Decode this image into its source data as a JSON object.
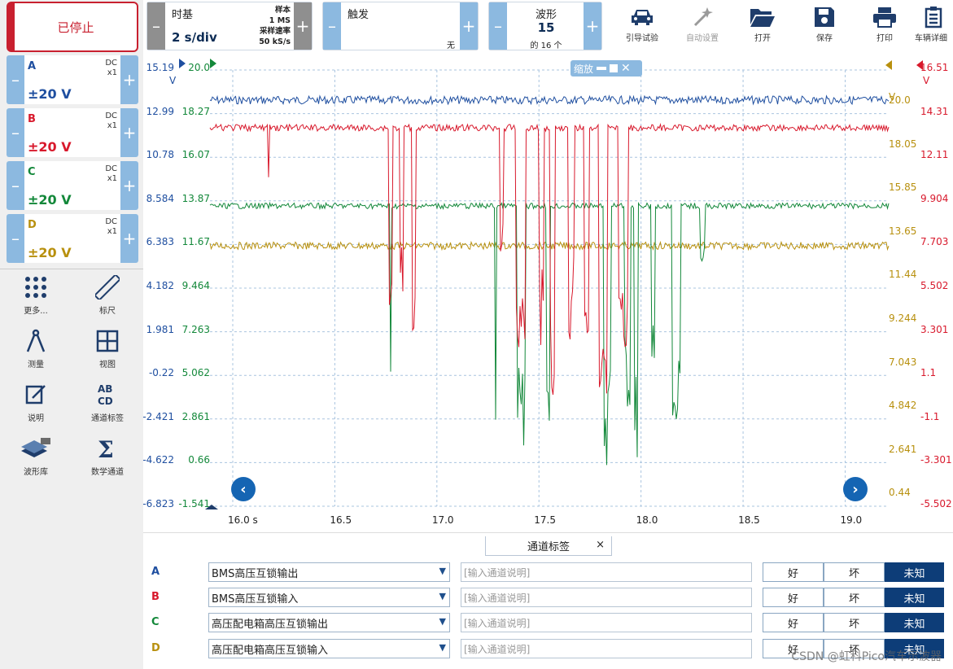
{
  "status_button": "已停止",
  "channels": [
    {
      "id": "A",
      "coupling": "DC",
      "probe": "x1",
      "range": "±20 V",
      "color": "#1f4fa0"
    },
    {
      "id": "B",
      "coupling": "DC",
      "probe": "x1",
      "range": "±20 V",
      "color": "#d8192c"
    },
    {
      "id": "C",
      "coupling": "DC",
      "probe": "x1",
      "range": "±20 V",
      "color": "#13883a"
    },
    {
      "id": "D",
      "coupling": "DC",
      "probe": "x1",
      "range": "±20 V",
      "color": "#b8900e"
    }
  ],
  "tools": [
    {
      "label": "更多...",
      "icon": "grid-dots-icon"
    },
    {
      "label": "标尺",
      "icon": "ruler-icon"
    },
    {
      "label": "测量",
      "icon": "compass-icon"
    },
    {
      "label": "视图",
      "icon": "view-grid-icon"
    },
    {
      "label": "说明",
      "icon": "note-edit-icon"
    },
    {
      "label": "通道标签",
      "icon": "abcd-icon"
    },
    {
      "label": "波形库",
      "icon": "waveform-library-icon"
    },
    {
      "label": "数学通道",
      "icon": "sigma-icon"
    }
  ],
  "timebase": {
    "title": "时基",
    "value": "2 s/div",
    "samples_label": "样本",
    "samples_value": "1 MS",
    "rate_label": "采样速率",
    "rate_value": "50 kS/s"
  },
  "trigger": {
    "title": "触发",
    "mode": "无"
  },
  "waveform": {
    "title": "波形",
    "current": "15",
    "total": "的 16 个"
  },
  "toolbar_buttons": [
    {
      "label": "引导试验",
      "icon": "car-icon",
      "enabled": true
    },
    {
      "label": "自动设置",
      "icon": "magic-wand-icon",
      "enabled": false
    },
    {
      "label": "打开",
      "icon": "folder-open-icon",
      "enabled": true
    },
    {
      "label": "保存",
      "icon": "floppy-disk-icon",
      "enabled": true
    },
    {
      "label": "打印",
      "icon": "printer-icon",
      "enabled": true
    },
    {
      "label": "车辆详细",
      "icon": "clipboard-icon",
      "enabled": true
    }
  ],
  "scope": {
    "zoom_label": "缩放",
    "x_ticks": [
      "16.0 s",
      "16.5",
      "17.0",
      "17.5",
      "18.0",
      "18.5",
      "19.0"
    ],
    "left_axis_A": [
      "15.19",
      "12.99",
      "10.78",
      "8.584",
      "6.383",
      "4.182",
      "1.981",
      "-0.22",
      "-2.421",
      "-4.622",
      "-6.823"
    ],
    "left_axis_C": [
      "20.0",
      "18.27",
      "16.07",
      "13.87",
      "11.67",
      "9.464",
      "7.263",
      "5.062",
      "2.861",
      "0.66",
      "-1.541"
    ],
    "right_axis_D": [
      "20.0",
      "18.05",
      "15.85",
      "13.65",
      "11.44",
      "9.244",
      "7.043",
      "4.842",
      "2.641",
      "0.44"
    ],
    "right_axis_B": [
      "16.51",
      "14.31",
      "12.11",
      "9.904",
      "7.703",
      "5.502",
      "3.301",
      "1.1",
      "-1.1",
      "-3.301",
      "-5.502"
    ],
    "unit": "V"
  },
  "channel_labels": {
    "title": "通道标签",
    "close": "×",
    "rows": [
      {
        "channel": "A",
        "name": "BMS高压互锁输出",
        "placeholder": "[输入通道说明]"
      },
      {
        "channel": "B",
        "name": "BMS高压互锁输入",
        "placeholder": "[输入通道说明]"
      },
      {
        "channel": "C",
        "name": "高压配电箱高压互锁输出",
        "placeholder": "[输入通道说明]"
      },
      {
        "channel": "D",
        "name": "高压配电箱高压互锁输入",
        "placeholder": "[输入通道说明]"
      }
    ],
    "states": [
      "好",
      "坏",
      "未知"
    ],
    "selected_state": "未知"
  },
  "watermark": "CSDN @虹科Pico汽车示波器"
}
